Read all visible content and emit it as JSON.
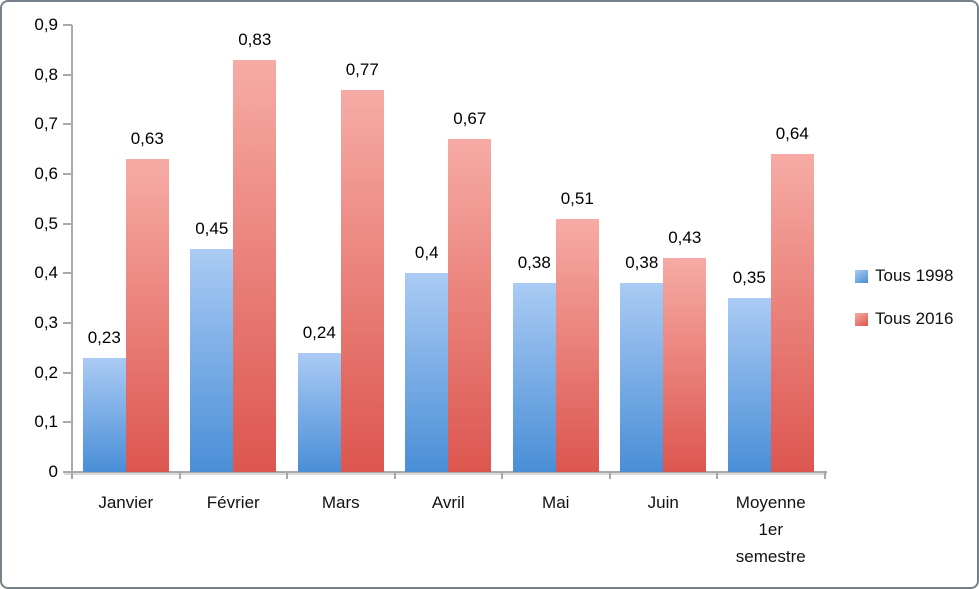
{
  "chart_data": {
    "type": "bar",
    "title": "",
    "xlabel": "",
    "ylabel": "",
    "categories": [
      "Janvier",
      "Février",
      "Mars",
      "Avril",
      "Mai",
      "Juin",
      "Moyenne 1er semestre"
    ],
    "category_display": [
      [
        "Janvier"
      ],
      [
        "Février"
      ],
      [
        "Mars"
      ],
      [
        "Avril"
      ],
      [
        "Mai"
      ],
      [
        "Juin"
      ],
      [
        "Moyenne",
        "1er",
        "semestre"
      ]
    ],
    "series": [
      {
        "name": "Tous 1998",
        "values": [
          0.23,
          0.45,
          0.24,
          0.4,
          0.38,
          0.38,
          0.35
        ],
        "labels": [
          "0,23",
          "0,45",
          "0,24",
          "0,4",
          "0,38",
          "0,38",
          "0,35"
        ],
        "color_top": "#aacbf4",
        "color_bottom": "#4a8ed7"
      },
      {
        "name": "Tous 2016",
        "values": [
          0.63,
          0.83,
          0.77,
          0.67,
          0.51,
          0.43,
          0.64
        ],
        "labels": [
          "0,63",
          "0,83",
          "0,77",
          "0,67",
          "0,51",
          "0,43",
          "0,64"
        ],
        "color_top": "#f7aba5",
        "color_bottom": "#dc564f"
      }
    ],
    "ylim": [
      0,
      0.9
    ],
    "yticks": [
      "0",
      "0,1",
      "0,2",
      "0,3",
      "0,4",
      "0,5",
      "0,6",
      "0,7",
      "0,8",
      "0,9"
    ],
    "grid": false,
    "legend_position": "right",
    "decimal_separator": ","
  },
  "colors": {
    "axis": "#a6a9ad",
    "text": "#000000",
    "frame_border": "#78828b",
    "background": "#ffffff"
  }
}
